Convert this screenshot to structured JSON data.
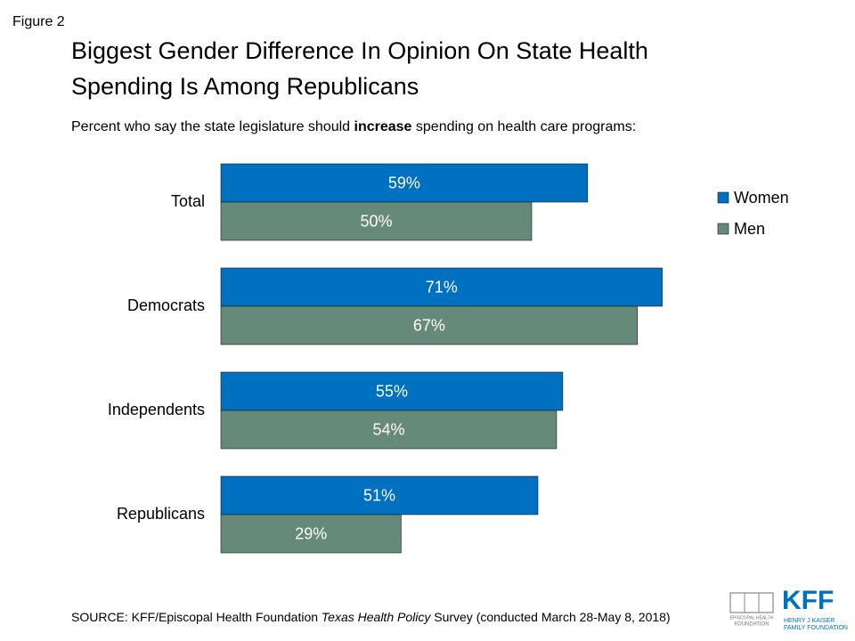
{
  "figure_label": "Figure 2",
  "chart_data": {
    "type": "bar",
    "orientation": "horizontal",
    "title": [
      "Biggest Gender Difference In Opinion On State Health",
      "Spending Is Among Republicans"
    ],
    "subtitle": [
      "Percent who say the state legislature should ",
      "increase",
      " spending on health care programs:"
    ],
    "categories": [
      "Total",
      "Democrats",
      "Independents",
      "Republicans"
    ],
    "series": [
      {
        "name": "Women",
        "color": "#0070c0",
        "values": [
          59,
          71,
          55,
          51
        ],
        "value_labels": [
          "59%",
          "71%",
          "55%",
          "51%"
        ]
      },
      {
        "name": "Men",
        "color": "#668a7a",
        "values": [
          50,
          67,
          54,
          29
        ],
        "value_labels": [
          "50%",
          "67%",
          "54%",
          "29%"
        ]
      }
    ],
    "xlim": [
      0,
      100
    ],
    "legend": "right"
  },
  "source": [
    "SOURCE: KFF/Episcopal Health Foundation ",
    "Texas Health Policy",
    " Survey (conducted March 28-May 8, 2018)"
  ],
  "logos": {
    "ehf": [
      "EPISCOPAL HEALTH",
      "FOUNDATION"
    ],
    "kff": [
      "KFF",
      "HENRY J KAISER",
      "FAMILY FOUNDATION"
    ]
  }
}
